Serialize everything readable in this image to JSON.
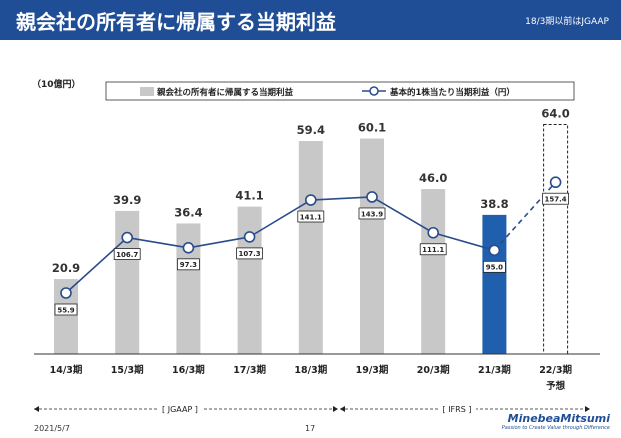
{
  "header": {
    "title": "親会社の所有者に帰属する当期利益",
    "note": "18/3期以前はJGAAP"
  },
  "chart_data": {
    "type": "bar",
    "unit_label": "（10億円）",
    "categories": [
      "14/3期",
      "15/3期",
      "16/3期",
      "17/3期",
      "18/3期",
      "19/3期",
      "20/3期",
      "21/3期",
      "22/3期"
    ],
    "forecast_label": "予想",
    "ylim": [
      0,
      70
    ],
    "series": [
      {
        "name": "親会社の所有者に帰属する当期利益",
        "type": "bar",
        "values": [
          20.9,
          39.9,
          36.4,
          41.1,
          59.4,
          60.1,
          46.0,
          38.8,
          64.0
        ],
        "labels": [
          "20.9",
          "39.9",
          "36.4",
          "41.1",
          "59.4",
          "60.1",
          "46.0",
          "38.8",
          "64.0"
        ]
      },
      {
        "name": "基本的1株当たり当期利益（円）",
        "type": "line",
        "values": [
          55.9,
          106.7,
          97.3,
          107.3,
          141.1,
          143.9,
          111.1,
          95.0,
          157.4
        ],
        "labels": [
          "55.9",
          "106.7",
          "97.3",
          "107.3",
          "141.1",
          "143.9",
          "111.1",
          "95.0",
          "157.4"
        ],
        "ylim": [
          0,
          230
        ]
      }
    ],
    "highlight_index": 7,
    "forecast_index": 8,
    "colors": {
      "bar": "#c8c8c8",
      "highlight": "#1f5fae",
      "line": "#2a4c8c",
      "forecast": "#ffffff"
    },
    "standards": [
      {
        "label": "[ JGAAP ]",
        "from": 0,
        "to": 4
      },
      {
        "label": "[ IFRS ]",
        "from": 5,
        "to": 8
      }
    ]
  },
  "footer": {
    "date": "2021/5/7",
    "page": "17",
    "logo_brand": "MinebeaMitsumi",
    "logo_tagline": "Passion to Create Value through Difference"
  }
}
